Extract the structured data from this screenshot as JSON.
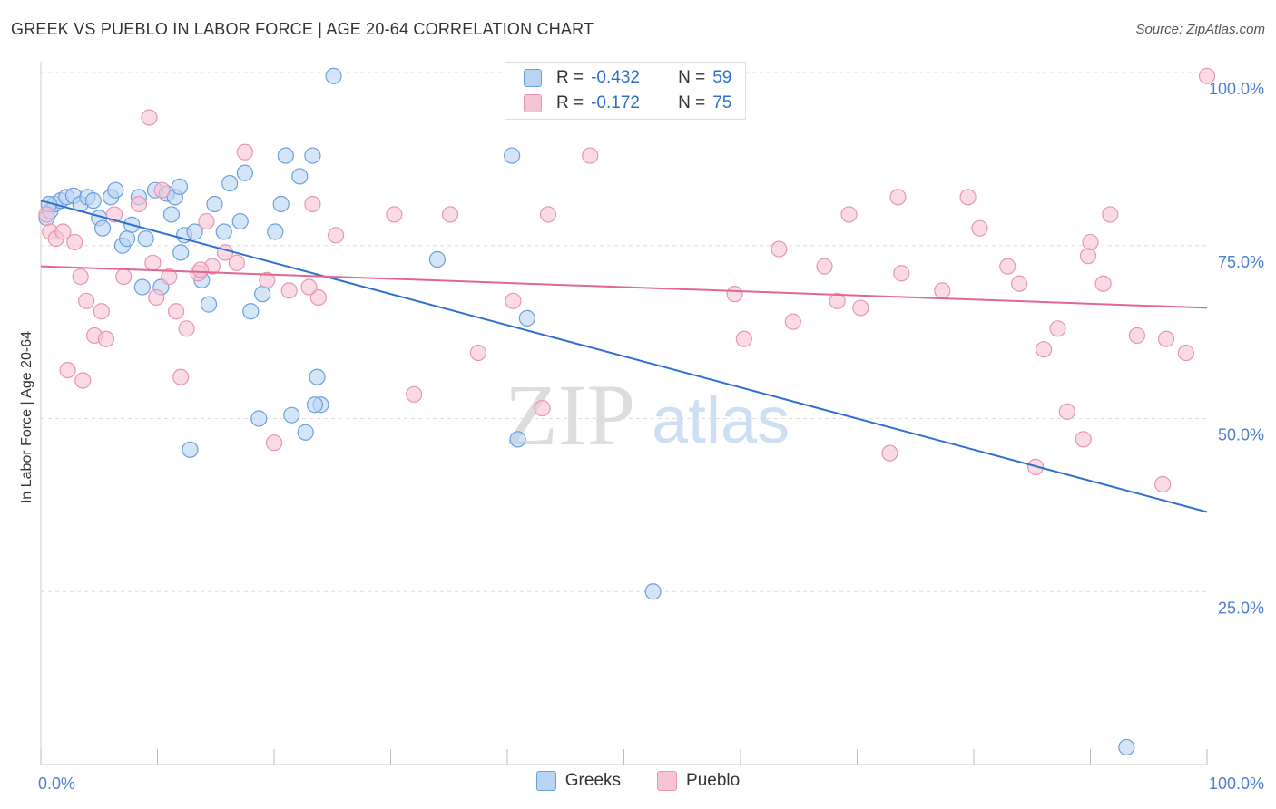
{
  "header": {
    "title": "GREEK VS PUEBLO IN LABOR FORCE | AGE 20-64 CORRELATION CHART",
    "source": "Source: ZipAtlas.com"
  },
  "stats": {
    "greeks": {
      "r_label": "R =",
      "r_value": "-0.432",
      "n_label": "N =",
      "n_value": "59"
    },
    "pueblo": {
      "r_label": "R =",
      "r_value": "-0.172",
      "n_label": "N =",
      "n_value": "75"
    }
  },
  "legend": {
    "greeks": "Greeks",
    "pueblo": "Pueblo"
  },
  "watermark": {
    "zip": "ZIP",
    "atlas": "atlas"
  },
  "colors": {
    "greeks_fill": "#b9d3f3",
    "greeks_stroke": "#6c9fdd",
    "greeks_line": "#2f6fcf",
    "pueblo_fill": "#f6c3d4",
    "pueblo_stroke": "#e895b3",
    "pueblo_line": "#e0678f",
    "axis_text": "#4d7fcf",
    "grid": "#dddddd"
  },
  "chart_data": {
    "type": "scatter",
    "ylabel": "In Labor Force | Age 20-64",
    "xlabel": "",
    "xlim": [
      0,
      100
    ],
    "ylim": [
      0,
      100
    ],
    "x_tick_labels": [
      {
        "value": 0,
        "label": "0.0%"
      },
      {
        "value": 100,
        "label": "100.0%"
      }
    ],
    "y_tick_labels": [
      {
        "value": 25,
        "label": "25.0%"
      },
      {
        "value": 50,
        "label": "50.0%"
      },
      {
        "value": 75,
        "label": "75.0%"
      },
      {
        "value": 100,
        "label": "100.0%"
      }
    ],
    "grid": true,
    "series": [
      {
        "name": "Greeks",
        "points": [
          [
            0.5,
            79.0
          ],
          [
            0.8,
            80.0
          ],
          [
            1.2,
            81.0
          ],
          [
            1.7,
            81.5
          ],
          [
            2.2,
            82.0
          ],
          [
            2.8,
            82.2
          ],
          [
            3.4,
            81.0
          ],
          [
            4.0,
            82.0
          ],
          [
            4.5,
            81.5
          ],
          [
            5.0,
            79.0
          ],
          [
            5.3,
            77.5
          ],
          [
            6.0,
            82.0
          ],
          [
            6.4,
            83.0
          ],
          [
            7.0,
            75.0
          ],
          [
            7.4,
            76.0
          ],
          [
            7.8,
            78.0
          ],
          [
            8.4,
            82.0
          ],
          [
            8.7,
            69.0
          ],
          [
            9.0,
            76.0
          ],
          [
            9.8,
            83.0
          ],
          [
            10.3,
            69.0
          ],
          [
            10.8,
            82.5
          ],
          [
            11.2,
            79.5
          ],
          [
            11.5,
            82.0
          ],
          [
            11.9,
            83.5
          ],
          [
            12.3,
            76.5
          ],
          [
            12.8,
            45.5
          ],
          [
            13.2,
            77.0
          ],
          [
            13.8,
            70.0
          ],
          [
            14.4,
            66.5
          ],
          [
            14.9,
            81.0
          ],
          [
            15.7,
            77.0
          ],
          [
            16.2,
            84.0
          ],
          [
            17.1,
            78.5
          ],
          [
            17.5,
            85.5
          ],
          [
            18.0,
            65.5
          ],
          [
            19.0,
            68.0
          ],
          [
            20.1,
            77.0
          ],
          [
            20.6,
            81.0
          ],
          [
            21.0,
            88.0
          ],
          [
            21.5,
            50.5
          ],
          [
            22.2,
            85.0
          ],
          [
            22.7,
            48.0
          ],
          [
            23.3,
            88.0
          ],
          [
            23.7,
            56.0
          ],
          [
            24.0,
            52.0
          ],
          [
            25.1,
            99.5
          ],
          [
            34.0,
            73.0
          ],
          [
            40.4,
            88.0
          ],
          [
            40.9,
            47.0
          ],
          [
            41.7,
            64.5
          ],
          [
            52.1,
            99.5
          ],
          [
            52.5,
            25.0
          ],
          [
            56.3,
            99.5
          ],
          [
            93.1,
            2.5
          ],
          [
            0.7,
            81.0
          ],
          [
            12.0,
            74.0
          ],
          [
            18.7,
            50.0
          ],
          [
            23.5,
            52.0
          ]
        ]
      },
      {
        "name": "Pueblo",
        "points": [
          [
            0.5,
            79.5
          ],
          [
            0.8,
            77.0
          ],
          [
            1.3,
            76.0
          ],
          [
            1.9,
            77.0
          ],
          [
            2.3,
            57.0
          ],
          [
            2.9,
            75.5
          ],
          [
            3.4,
            70.5
          ],
          [
            3.6,
            55.5
          ],
          [
            3.9,
            67.0
          ],
          [
            4.6,
            62.0
          ],
          [
            5.2,
            65.5
          ],
          [
            5.6,
            61.5
          ],
          [
            6.3,
            79.5
          ],
          [
            7.1,
            70.5
          ],
          [
            8.4,
            81.0
          ],
          [
            9.3,
            93.5
          ],
          [
            9.9,
            67.5
          ],
          [
            10.4,
            83.0
          ],
          [
            11.0,
            70.5
          ],
          [
            11.6,
            65.5
          ],
          [
            12.0,
            56.0
          ],
          [
            12.5,
            63.0
          ],
          [
            13.5,
            71.0
          ],
          [
            14.2,
            78.5
          ],
          [
            14.7,
            72.0
          ],
          [
            15.8,
            74.0
          ],
          [
            16.8,
            72.5
          ],
          [
            17.5,
            88.5
          ],
          [
            19.4,
            70.0
          ],
          [
            20.0,
            46.5
          ],
          [
            21.3,
            68.5
          ],
          [
            23.3,
            81.0
          ],
          [
            23.8,
            67.5
          ],
          [
            25.3,
            76.5
          ],
          [
            30.3,
            79.5
          ],
          [
            32.0,
            53.5
          ],
          [
            35.1,
            79.5
          ],
          [
            37.5,
            59.5
          ],
          [
            40.5,
            67.0
          ],
          [
            43.0,
            51.5
          ],
          [
            43.5,
            79.5
          ],
          [
            47.1,
            88.0
          ],
          [
            59.5,
            68.0
          ],
          [
            60.3,
            61.5
          ],
          [
            63.3,
            74.5
          ],
          [
            64.5,
            64.0
          ],
          [
            67.2,
            72.0
          ],
          [
            68.3,
            67.0
          ],
          [
            69.3,
            79.5
          ],
          [
            70.3,
            66.0
          ],
          [
            72.8,
            45.0
          ],
          [
            73.5,
            82.0
          ],
          [
            73.8,
            71.0
          ],
          [
            77.3,
            68.5
          ],
          [
            79.5,
            82.0
          ],
          [
            80.5,
            77.5
          ],
          [
            82.9,
            72.0
          ],
          [
            83.9,
            69.5
          ],
          [
            85.3,
            43.0
          ],
          [
            86.0,
            60.0
          ],
          [
            87.2,
            63.0
          ],
          [
            88.0,
            51.0
          ],
          [
            89.4,
            47.0
          ],
          [
            89.8,
            73.5
          ],
          [
            90.0,
            75.5
          ],
          [
            91.1,
            69.5
          ],
          [
            91.7,
            79.5
          ],
          [
            94.0,
            62.0
          ],
          [
            96.2,
            40.5
          ],
          [
            96.5,
            61.5
          ],
          [
            98.2,
            59.5
          ],
          [
            100.0,
            99.5
          ],
          [
            13.7,
            71.5
          ],
          [
            23.0,
            69.0
          ],
          [
            9.6,
            72.5
          ]
        ]
      }
    ],
    "trend_lines": [
      {
        "name": "Greeks",
        "x": [
          0,
          100
        ],
        "y": [
          81.5,
          36.5
        ]
      },
      {
        "name": "Pueblo",
        "x": [
          0,
          100
        ],
        "y": [
          72.0,
          66.0
        ]
      }
    ]
  }
}
